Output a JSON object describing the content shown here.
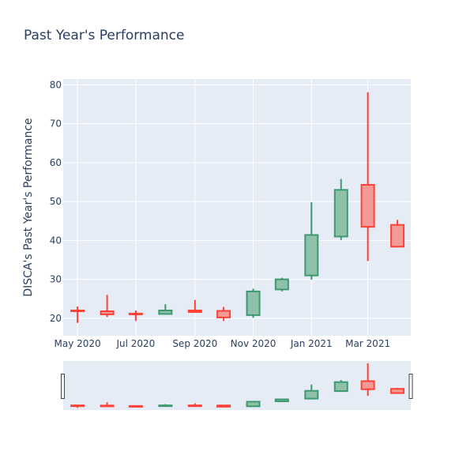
{
  "chart_data": {
    "type": "candlestick",
    "title": "Past Year's Performance",
    "ylabel": "DISCA's Past Year's Performance",
    "xlabel": "",
    "ylim": [
      15.5,
      81.5
    ],
    "yticks": [
      20,
      30,
      40,
      50,
      60,
      70,
      80
    ],
    "xlim": [
      "2020-04-16",
      "2021-04-15"
    ],
    "xticks": [
      {
        "date": "2020-05-01",
        "label": "May 2020"
      },
      {
        "date": "2020-07-01",
        "label": "Jul 2020"
      },
      {
        "date": "2020-09-01",
        "label": "Sep 2020"
      },
      {
        "date": "2020-11-01",
        "label": "Nov 2020"
      },
      {
        "date": "2021-01-01",
        "label": "Jan 2021"
      },
      {
        "date": "2021-03-01",
        "label": "Mar 2021"
      }
    ],
    "colors": {
      "increasing": "#3d9970",
      "increasing_fill": "#8fc1aa",
      "decreasing": "#ff4136",
      "decreasing_fill": "#f49a96",
      "plot_bg": "#e5ecf6",
      "grid": "#ffffff",
      "text": "#2a3f5f"
    },
    "grid": true,
    "rangeslider": true,
    "candles": [
      {
        "date": "2020-05-01",
        "open": 22.0,
        "high": 23.0,
        "low": 18.8,
        "close": 21.8
      },
      {
        "date": "2020-06-01",
        "open": 21.8,
        "high": 26.0,
        "low": 20.3,
        "close": 21.0
      },
      {
        "date": "2020-07-01",
        "open": 21.2,
        "high": 22.0,
        "low": 19.3,
        "close": 21.0
      },
      {
        "date": "2020-08-01",
        "open": 21.1,
        "high": 23.6,
        "low": 20.9,
        "close": 22.0
      },
      {
        "date": "2020-09-01",
        "open": 22.0,
        "high": 24.7,
        "low": 21.4,
        "close": 21.6
      },
      {
        "date": "2020-10-01",
        "open": 21.9,
        "high": 22.9,
        "low": 19.3,
        "close": 20.2
      },
      {
        "date": "2020-11-01",
        "open": 20.8,
        "high": 27.6,
        "low": 20.1,
        "close": 26.9
      },
      {
        "date": "2020-12-01",
        "open": 27.4,
        "high": 30.4,
        "low": 26.9,
        "close": 30.0
      },
      {
        "date": "2021-01-01",
        "open": 31.0,
        "high": 49.8,
        "low": 29.9,
        "close": 41.4
      },
      {
        "date": "2021-02-01",
        "open": 41.0,
        "high": 55.8,
        "low": 40.1,
        "close": 53.0
      },
      {
        "date": "2021-03-01",
        "open": 54.3,
        "high": 78.1,
        "low": 34.7,
        "close": 43.5
      },
      {
        "date": "2021-04-01",
        "open": 44.0,
        "high": 45.3,
        "low": 38.2,
        "close": 38.4
      }
    ]
  }
}
